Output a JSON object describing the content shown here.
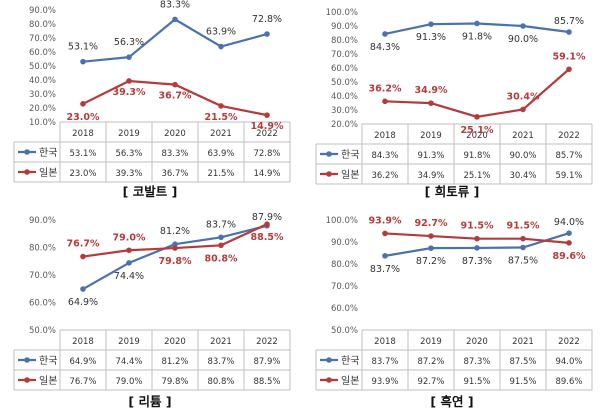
{
  "colors": {
    "korea": "#4a72ad",
    "japan": "#b53b3b",
    "grid": "#bfbfbf",
    "text": "#333333"
  },
  "chart_data": [
    {
      "type": "line",
      "title": "[ 코발트 ]",
      "categories": [
        "2018",
        "2019",
        "2020",
        "2021",
        "2022"
      ],
      "ylim": [
        10,
        90
      ],
      "yticks": [
        "10.0%",
        "20.0%",
        "30.0%",
        "40.0%",
        "50.0%",
        "60.0%",
        "70.0%",
        "80.0%",
        "90.0%"
      ],
      "series": [
        {
          "name": "한국",
          "values": [
            53.1,
            56.3,
            83.3,
            63.9,
            72.8
          ],
          "labels": [
            "53.1%",
            "56.3%",
            "83.3%",
            "63.9%",
            "72.8%"
          ],
          "table": [
            "53.1%",
            "56.3%",
            "83.3%",
            "63.9%",
            "72.8%"
          ]
        },
        {
          "name": "일본",
          "values": [
            23.0,
            39.3,
            36.7,
            21.5,
            14.9
          ],
          "labels": [
            "23.0%",
            "39.3%",
            "36.7%",
            "21.5%",
            "14.9%"
          ],
          "table": [
            "23.0%",
            "39.3%",
            "36.7%",
            "21.5%",
            "14.9%"
          ]
        }
      ]
    },
    {
      "type": "line",
      "title": "[ 희토류 ]",
      "categories": [
        "2018",
        "2019",
        "2020",
        "2021",
        "2022"
      ],
      "ylim": [
        20,
        100
      ],
      "yticks": [
        "20.0%",
        "30.0%",
        "40.0%",
        "50.0%",
        "60.0%",
        "70.0%",
        "80.0%",
        "90.0%",
        "100.0%"
      ],
      "series": [
        {
          "name": "한국",
          "values": [
            84.3,
            91.3,
            91.8,
            90.0,
            85.7
          ],
          "labels": [
            "84.3%",
            "91.3%",
            "91.8%",
            "90.0%",
            "85.7%"
          ],
          "table": [
            "84.3%",
            "91.3%",
            "91.8%",
            "90.0%",
            "85.7%"
          ]
        },
        {
          "name": "일본",
          "values": [
            36.2,
            34.9,
            25.1,
            30.4,
            59.1
          ],
          "labels": [
            "36.2%",
            "34.9%",
            "25.1%",
            "30.4%",
            "59.1%"
          ],
          "table": [
            "36.2%",
            "34.9%",
            "25.1%",
            "30.4%",
            "59.1%"
          ]
        }
      ]
    },
    {
      "type": "line",
      "title": "[ 리튬 ]",
      "categories": [
        "2018",
        "2019",
        "2020",
        "2021",
        "2022"
      ],
      "ylim": [
        50,
        90
      ],
      "yticks": [
        "50.0%",
        "60.0%",
        "70.0%",
        "80.0%",
        "90.0%"
      ],
      "series": [
        {
          "name": "한국",
          "values": [
            64.9,
            74.4,
            81.2,
            83.7,
            87.9
          ],
          "labels": [
            "64.9%",
            "74.4%",
            "81.2%",
            "83.7%",
            "87.9%"
          ],
          "table": [
            "64.9%",
            "74.4%",
            "81.2%",
            "83.7%",
            "87.9%"
          ]
        },
        {
          "name": "일본",
          "values": [
            76.7,
            79.0,
            79.8,
            80.8,
            88.5
          ],
          "labels": [
            "76.7%",
            "79.0%",
            "79.8%",
            "80.8%",
            "88.5%"
          ],
          "table": [
            "76.7%",
            "79.0%",
            "79.8%",
            "80.8%",
            "88.5%"
          ]
        }
      ]
    },
    {
      "type": "line",
      "title": "[ 흑연 ]",
      "categories": [
        "2018",
        "2019",
        "2020",
        "2021",
        "2022"
      ],
      "ylim": [
        50,
        100
      ],
      "yticks": [
        "50.0%",
        "60.0%",
        "70.0%",
        "80.0%",
        "90.0%",
        "100.0%"
      ],
      "series": [
        {
          "name": "한국",
          "values": [
            83.7,
            87.2,
            87.3,
            87.5,
            94.0
          ],
          "labels": [
            "83.7%",
            "87.2%",
            "87.3%",
            "87.5%",
            "94.0%"
          ],
          "table": [
            "83.7%",
            "87.2%",
            "87.3%",
            "87.5%",
            "94.0%"
          ]
        },
        {
          "name": "일본",
          "values": [
            93.9,
            92.7,
            91.5,
            91.5,
            89.6
          ],
          "labels": [
            "93.9%",
            "92.7%",
            "91.5%",
            "91.5%",
            "89.6%"
          ],
          "table": [
            "93.9%",
            "92.7%",
            "91.5%",
            "91.5%",
            "89.6%"
          ]
        }
      ]
    }
  ]
}
